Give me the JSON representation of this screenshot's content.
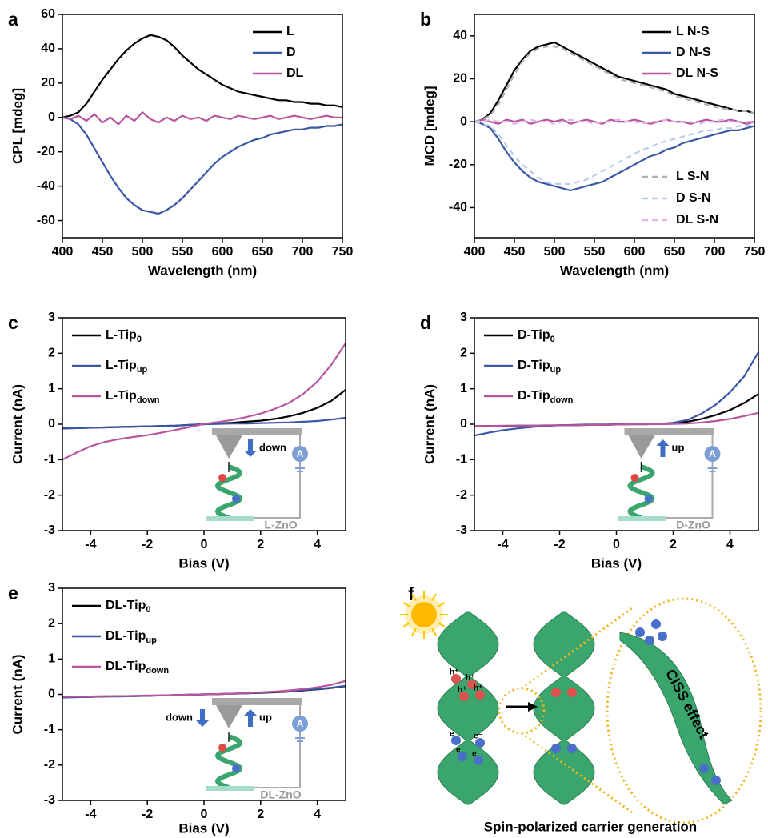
{
  "chart_data": [
    {
      "type": "line",
      "panel": "a",
      "xlabel": "Wavelength (nm)",
      "ylabel": "CPL [mdeg]",
      "x": [
        400,
        410,
        420,
        430,
        440,
        450,
        460,
        470,
        480,
        490,
        500,
        510,
        520,
        530,
        540,
        550,
        560,
        570,
        580,
        590,
        600,
        610,
        620,
        630,
        640,
        650,
        660,
        670,
        680,
        690,
        700,
        710,
        720,
        730,
        740,
        750
      ],
      "xlim": [
        400,
        750
      ],
      "xticks": [
        400,
        450,
        500,
        550,
        600,
        650,
        700,
        750
      ],
      "ylim": [
        -70,
        60
      ],
      "yticks": [
        -60,
        -40,
        -20,
        0,
        20,
        40,
        60
      ],
      "legend": "upper right",
      "series": [
        {
          "name": "L",
          "color": "#000000",
          "values": [
            0,
            1,
            3,
            8,
            15,
            22,
            28,
            34,
            39,
            43,
            46,
            48,
            47,
            45,
            41,
            36,
            32,
            28,
            25,
            22,
            19,
            17,
            15,
            14,
            13,
            12,
            11,
            10,
            10,
            9,
            9,
            8,
            8,
            7,
            7,
            6
          ]
        },
        {
          "name": "D",
          "color": "#3a56a5",
          "values": [
            0,
            -1,
            -4,
            -10,
            -18,
            -26,
            -34,
            -41,
            -47,
            -51,
            -54,
            -55,
            -56,
            -54,
            -51,
            -47,
            -42,
            -37,
            -32,
            -27,
            -23,
            -20,
            -17,
            -15,
            -13,
            -12,
            -10,
            -9,
            -8,
            -7,
            -7,
            -6,
            -6,
            -5,
            -5,
            -4
          ]
        },
        {
          "name": "DL",
          "color": "#b8559f",
          "values": [
            0,
            -1,
            1,
            -2,
            2,
            -3,
            0,
            -4,
            1,
            -2,
            3,
            -1,
            -3,
            0,
            -2,
            1,
            -1,
            0,
            -2,
            1,
            0,
            -1,
            1,
            0,
            -1,
            0,
            1,
            -1,
            0,
            1,
            0,
            -1,
            0,
            1,
            0,
            0
          ]
        }
      ]
    },
    {
      "type": "line",
      "panel": "b",
      "xlabel": "Wavelength (nm)",
      "ylabel": "MCD [mdeg]",
      "x": [
        400,
        410,
        420,
        430,
        440,
        450,
        460,
        470,
        480,
        490,
        500,
        510,
        520,
        530,
        540,
        550,
        560,
        570,
        580,
        590,
        600,
        610,
        620,
        630,
        640,
        650,
        660,
        670,
        680,
        690,
        700,
        710,
        720,
        730,
        740,
        750
      ],
      "xlim": [
        400,
        750
      ],
      "xticks": [
        400,
        450,
        500,
        550,
        600,
        650,
        700,
        750
      ],
      "ylim": [
        -54,
        50
      ],
      "yticks": [
        -40,
        -20,
        0,
        20,
        40
      ],
      "legend": "upper right",
      "series": [
        {
          "name": "L N-S",
          "color": "#000000",
          "values": [
            0,
            1,
            4,
            10,
            17,
            24,
            29,
            33,
            35,
            36,
            37,
            35,
            33,
            31,
            29,
            27,
            25,
            23,
            21,
            20,
            19,
            18,
            17,
            16,
            15,
            13,
            12,
            11,
            10,
            9,
            8,
            7,
            6,
            5,
            5,
            4
          ]
        },
        {
          "name": "D N-S",
          "color": "#3a56a5",
          "values": [
            0,
            -1,
            -3,
            -8,
            -14,
            -19,
            -23,
            -26,
            -28,
            -29,
            -30,
            -31,
            -32,
            -31,
            -30,
            -29,
            -28,
            -26,
            -24,
            -22,
            -20,
            -18,
            -16,
            -15,
            -13,
            -12,
            -10,
            -9,
            -8,
            -7,
            -6,
            -5,
            -4,
            -4,
            -3,
            -2
          ]
        },
        {
          "name": "DL N-S",
          "color": "#b8559f",
          "values": [
            0,
            1,
            0,
            -1,
            1,
            0,
            1,
            -1,
            0,
            1,
            0,
            1,
            -1,
            0,
            1,
            0,
            -1,
            1,
            0,
            0,
            1,
            0,
            -1,
            0,
            1,
            0,
            0,
            -1,
            0,
            1,
            0,
            0,
            1,
            0,
            -1,
            0
          ]
        },
        {
          "name": "L S-N",
          "color": "#b0b0b0",
          "dashed": true,
          "values": [
            0,
            1,
            3,
            8,
            15,
            22,
            28,
            32,
            34,
            35,
            35,
            34,
            32,
            30,
            28,
            26,
            24,
            22,
            20,
            19,
            18,
            17,
            16,
            15,
            14,
            12,
            11,
            10,
            9,
            8,
            7,
            6,
            6,
            5,
            5,
            4
          ]
        },
        {
          "name": "D S-N",
          "color": "#b9cbea",
          "dashed": true,
          "values": [
            0,
            -1,
            -2,
            -6,
            -11,
            -16,
            -20,
            -23,
            -26,
            -28,
            -29,
            -29,
            -29,
            -28,
            -27,
            -25,
            -23,
            -21,
            -19,
            -17,
            -15,
            -13,
            -12,
            -10,
            -9,
            -8,
            -7,
            -6,
            -5,
            -4,
            -4,
            -3,
            -3,
            -2,
            -2,
            -1
          ]
        },
        {
          "name": "DL S-N",
          "color": "#e3b5ec",
          "dashed": true,
          "values": [
            0,
            0,
            1,
            0,
            0,
            -1,
            0,
            1,
            0,
            0,
            -1,
            0,
            1,
            0,
            0,
            -1,
            0,
            0,
            1,
            0,
            0,
            -1,
            0,
            0,
            1,
            0,
            0,
            0,
            -1,
            0,
            0,
            1,
            0,
            0,
            0,
            0
          ]
        }
      ]
    },
    {
      "type": "line",
      "panel": "c",
      "xlabel": "Bias (V)",
      "ylabel": "Current (nA)",
      "x": [
        -5,
        -4.5,
        -4,
        -3.5,
        -3,
        -2.5,
        -2,
        -1.5,
        -1,
        -0.5,
        0,
        0.5,
        1,
        1.5,
        2,
        2.5,
        3,
        3.5,
        4,
        4.5,
        5
      ],
      "xlim": [
        -5,
        5
      ],
      "xticks": [
        -4,
        -2,
        0,
        2,
        4
      ],
      "ylim": [
        -3,
        3
      ],
      "yticks": [
        -3,
        -2,
        -1,
        0,
        1,
        2,
        3
      ],
      "legend": "upper left",
      "series": [
        {
          "name": "L-Tip",
          "sub": "0",
          "color": "#000000",
          "values": [
            -0.12,
            -0.11,
            -0.1,
            -0.09,
            -0.08,
            -0.07,
            -0.06,
            -0.05,
            -0.04,
            -0.02,
            0,
            0.02,
            0.04,
            0.07,
            0.1,
            0.15,
            0.22,
            0.32,
            0.46,
            0.66,
            0.97
          ]
        },
        {
          "name": "L-Tip",
          "sub": "up",
          "color": "#3a56a5",
          "values": [
            -0.12,
            -0.11,
            -0.1,
            -0.09,
            -0.08,
            -0.07,
            -0.06,
            -0.05,
            -0.04,
            -0.02,
            0,
            0.01,
            0.02,
            0.02,
            0.03,
            0.04,
            0.05,
            0.07,
            0.09,
            0.13,
            0.18
          ]
        },
        {
          "name": "L-Tip",
          "sub": "down",
          "color": "#b8559f",
          "values": [
            -1.0,
            -0.8,
            -0.62,
            -0.5,
            -0.42,
            -0.36,
            -0.31,
            -0.24,
            -0.16,
            -0.08,
            0.01,
            0.06,
            0.12,
            0.2,
            0.3,
            0.43,
            0.6,
            0.85,
            1.2,
            1.68,
            2.28
          ]
        }
      ],
      "inset": {
        "arrows": [
          {
            "label": "down",
            "direction": "down"
          }
        ],
        "meter": "A",
        "substrate": "L-ZnO"
      }
    },
    {
      "type": "line",
      "panel": "d",
      "xlabel": "Bias (V)",
      "ylabel": "Current (nA)",
      "x": [
        -5,
        -4.5,
        -4,
        -3.5,
        -3,
        -2.5,
        -2,
        -1.5,
        -1,
        -0.5,
        0,
        0.5,
        1,
        1.5,
        2,
        2.5,
        3,
        3.5,
        4,
        4.5,
        5
      ],
      "xlim": [
        -5,
        5
      ],
      "xticks": [
        -4,
        -2,
        0,
        2,
        4
      ],
      "ylim": [
        -3,
        3
      ],
      "yticks": [
        -3,
        -2,
        -1,
        0,
        1,
        2,
        3
      ],
      "legend": "upper left",
      "series": [
        {
          "name": "D-Tip",
          "sub": "0",
          "color": "#000000",
          "values": [
            -0.05,
            -0.05,
            -0.05,
            -0.04,
            -0.04,
            -0.04,
            -0.03,
            -0.03,
            -0.02,
            -0.02,
            -0.01,
            0,
            0,
            0.01,
            0.03,
            0.07,
            0.15,
            0.26,
            0.4,
            0.6,
            0.85
          ]
        },
        {
          "name": "D-Tip",
          "sub": "up",
          "color": "#3a56a5",
          "values": [
            -0.32,
            -0.24,
            -0.17,
            -0.12,
            -0.08,
            -0.05,
            -0.03,
            -0.02,
            -0.01,
            -0.01,
            0,
            0,
            0,
            0.01,
            0.04,
            0.12,
            0.3,
            0.55,
            0.9,
            1.35,
            2.03
          ]
        },
        {
          "name": "D-Tip",
          "sub": "down",
          "color": "#b8559f",
          "values": [
            -0.05,
            -0.05,
            -0.04,
            -0.04,
            -0.04,
            -0.03,
            -0.03,
            -0.03,
            -0.02,
            -0.02,
            -0.01,
            0,
            0,
            0,
            0.01,
            0.02,
            0.05,
            0.09,
            0.15,
            0.23,
            0.32
          ]
        }
      ],
      "inset": {
        "arrows": [
          {
            "label": "up",
            "direction": "up"
          }
        ],
        "meter": "A",
        "substrate": "D-ZnO"
      }
    },
    {
      "type": "line",
      "panel": "e",
      "xlabel": "Bias (V)",
      "ylabel": "Current (nA)",
      "x": [
        -5,
        -4.5,
        -4,
        -3.5,
        -3,
        -2.5,
        -2,
        -1.5,
        -1,
        -0.5,
        0,
        0.5,
        1,
        1.5,
        2,
        2.5,
        3,
        3.5,
        4,
        4.5,
        5
      ],
      "xlim": [
        -5,
        5
      ],
      "xticks": [
        -4,
        -2,
        0,
        2,
        4
      ],
      "ylim": [
        -3,
        3
      ],
      "yticks": [
        -3,
        -2,
        -1,
        0,
        1,
        2,
        3
      ],
      "legend": "upper left",
      "series": [
        {
          "name": "DL-Tip",
          "sub": "0",
          "color": "#000000",
          "values": [
            -0.08,
            -0.07,
            -0.07,
            -0.06,
            -0.05,
            -0.05,
            -0.04,
            -0.03,
            -0.02,
            -0.01,
            0,
            0.01,
            0.02,
            0.03,
            0.04,
            0.06,
            0.08,
            0.11,
            0.14,
            0.18,
            0.23
          ]
        },
        {
          "name": "DL-Tip",
          "sub": "up",
          "color": "#3a56a5",
          "values": [
            -0.09,
            -0.08,
            -0.07,
            -0.06,
            -0.06,
            -0.05,
            -0.04,
            -0.03,
            -0.02,
            -0.01,
            0,
            0.01,
            0.02,
            0.03,
            0.05,
            0.07,
            0.09,
            0.12,
            0.15,
            0.19,
            0.24
          ]
        },
        {
          "name": "DL-Tip",
          "sub": "down",
          "color": "#b8559f",
          "values": [
            -0.07,
            -0.06,
            -0.06,
            -0.05,
            -0.05,
            -0.04,
            -0.03,
            -0.03,
            -0.02,
            -0.01,
            0,
            0.01,
            0.02,
            0.04,
            0.06,
            0.08,
            0.11,
            0.15,
            0.2,
            0.27,
            0.38
          ]
        }
      ],
      "inset": {
        "arrows": [
          {
            "label": "down",
            "direction": "down"
          },
          {
            "label": "up",
            "direction": "up"
          }
        ],
        "meter": "A",
        "substrate": "DL-ZnO"
      }
    }
  ],
  "illustration": {
    "panel": "f",
    "effect_label": "CISS effect",
    "caption": "Spin-polarized carrier generation",
    "hole": "h⁺",
    "electron": "e⁻"
  }
}
